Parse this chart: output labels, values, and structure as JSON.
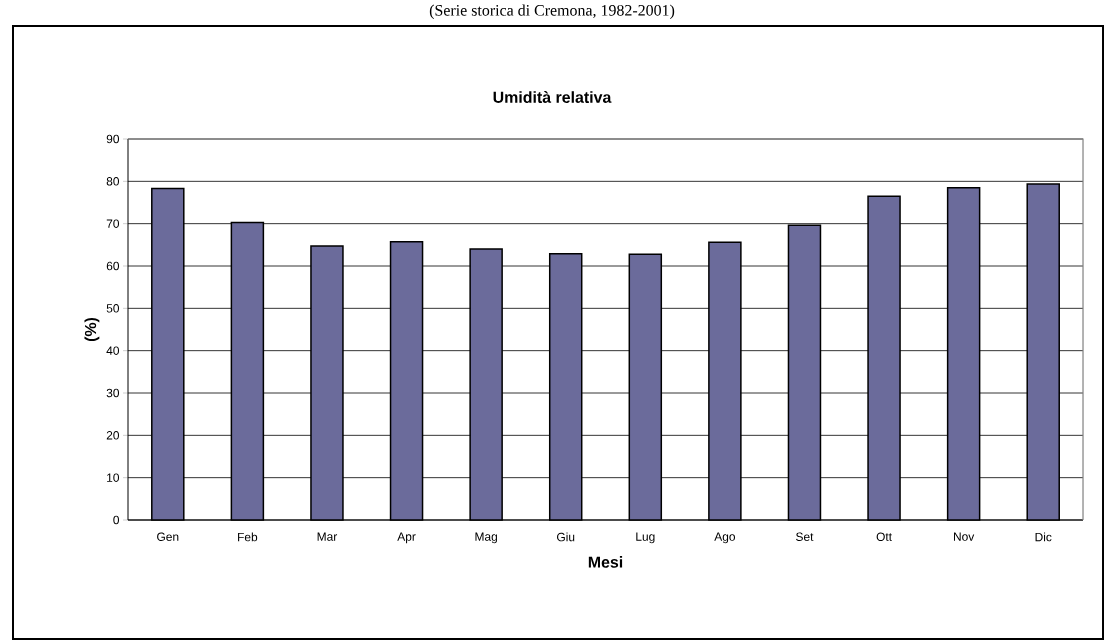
{
  "chart_data": {
    "type": "bar",
    "title": "Umidità relativa",
    "subtitle": "(Serie storica di Cremona, 1982-2001)",
    "xlabel": "Mesi",
    "ylabel": "(%)",
    "categories": [
      "Gen",
      "Feb",
      "Mar",
      "Apr",
      "Mag",
      "Giu",
      "Lug",
      "Ago",
      "Set",
      "Ott",
      "Nov",
      "Dic"
    ],
    "values": [
      78.3,
      70.3,
      64.7,
      65.7,
      64.0,
      62.9,
      62.8,
      65.6,
      69.6,
      76.5,
      78.5,
      79.4
    ],
    "color": "#6b6b9b",
    "ylim": [
      0,
      90
    ],
    "yticks": [
      0,
      10,
      20,
      30,
      40,
      50,
      60,
      70,
      80,
      90
    ],
    "grid": "y"
  }
}
